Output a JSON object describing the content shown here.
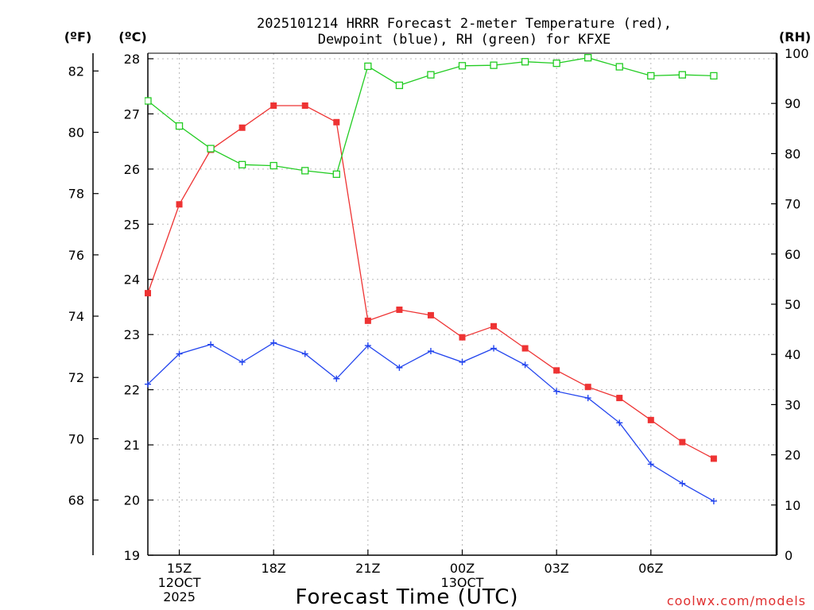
{
  "chart_data": {
    "type": "line",
    "title_lines": [
      "2025101214 HRRR Forecast 2-meter Temperature (red),",
      "Dewpoint (blue), RH (green) for KFXE"
    ],
    "xlabel": "Forecast Time (UTC)",
    "credit": "coolwx.com/models",
    "units": {
      "fahrenheit": "(ºF)",
      "celsius": "(ºC)",
      "rh": "(RH)"
    },
    "x_range": [
      14,
      34
    ],
    "x_ticks": [
      {
        "x": 15,
        "lines": [
          "15Z",
          "12OCT",
          "2025"
        ]
      },
      {
        "x": 18,
        "lines": [
          "18Z"
        ]
      },
      {
        "x": 21,
        "lines": [
          "21Z"
        ]
      },
      {
        "x": 24,
        "lines": [
          "00Z",
          "13OCT"
        ]
      },
      {
        "x": 27,
        "lines": [
          "03Z"
        ]
      },
      {
        "x": 30,
        "lines": [
          "06Z"
        ]
      }
    ],
    "celsius_axis": {
      "range": [
        19,
        28.1
      ],
      "ticks": [
        "19",
        "20",
        "21",
        "22",
        "23",
        "24",
        "25",
        "26",
        "27",
        "28"
      ]
    },
    "fahrenheit_axis": {
      "range": [
        66.2,
        82.58
      ],
      "ticks": [
        "68",
        "70",
        "72",
        "74",
        "76",
        "78",
        "80",
        "82"
      ]
    },
    "rh_axis": {
      "range": [
        0,
        100
      ],
      "ticks": [
        "0",
        "10",
        "20",
        "30",
        "40",
        "50",
        "60",
        "70",
        "80",
        "90",
        "100"
      ]
    },
    "series": [
      {
        "name": "Temperature (red)",
        "axis": "celsius",
        "color": "#ee3333",
        "marker": "filled-square",
        "x": [
          14,
          15,
          16,
          17,
          18,
          19,
          20,
          21,
          22,
          23,
          24,
          25,
          26,
          27,
          28,
          29,
          30,
          31,
          32
        ],
        "values": [
          23.75,
          25.36,
          26.35,
          26.75,
          27.15,
          27.15,
          26.85,
          23.25,
          23.45,
          23.35,
          22.95,
          23.15,
          22.75,
          22.35,
          22.05,
          21.85,
          21.45,
          21.05,
          20.75
        ]
      },
      {
        "name": "Dewpoint (blue)",
        "axis": "celsius",
        "color": "#2244ee",
        "marker": "plus",
        "x": [
          14,
          15,
          16,
          17,
          18,
          19,
          20,
          21,
          22,
          23,
          24,
          25,
          26,
          27,
          28,
          29,
          30,
          31,
          32
        ],
        "values": [
          22.1,
          22.65,
          22.82,
          22.5,
          22.85,
          22.65,
          22.2,
          22.8,
          22.4,
          22.7,
          22.5,
          22.75,
          22.45,
          21.97,
          21.85,
          21.4,
          20.65,
          20.3,
          19.98
        ]
      },
      {
        "name": "RH (green)",
        "axis": "rh",
        "color": "#22cc22",
        "marker": "open-square",
        "x": [
          14,
          15,
          16,
          17,
          18,
          19,
          20,
          21,
          22,
          23,
          24,
          25,
          26,
          27,
          28,
          29,
          30,
          31,
          32
        ],
        "values": [
          90.5,
          85.5,
          81,
          77.8,
          77.6,
          76.6,
          75.9,
          97.4,
          93.6,
          95.7,
          97.5,
          97.6,
          98.3,
          98,
          99.1,
          97.3,
          95.5,
          95.7,
          95.5
        ]
      }
    ]
  }
}
